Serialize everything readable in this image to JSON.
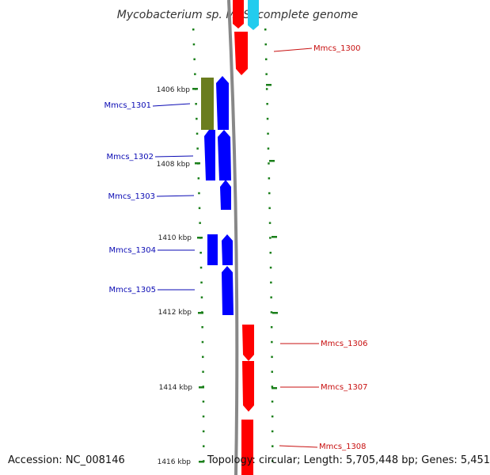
{
  "title": "Mycobacterium sp. MCS, complete genome",
  "accession": "Accession: NC_008146",
  "topology": "Topology: circular; Length: 5,705,448 bp; Genes: 5,451",
  "colors": {
    "forward": "#ff0000",
    "reverse": "#0000ff",
    "olive": "#6b7d1f",
    "cyan": "#22ccee",
    "ticks": "#1a7f1a",
    "backbone": "#888888"
  },
  "kbp_marks": [
    "1406 kbp",
    "1408 kbp",
    "1410 kbp",
    "1412 kbp",
    "1414 kbp",
    "1416 kbp"
  ],
  "genes": [
    {
      "label": "Mmcs_1300",
      "strand": "forward"
    },
    {
      "label": "Mmcs_1301",
      "strand": "reverse"
    },
    {
      "label": "Mmcs_1302",
      "strand": "reverse"
    },
    {
      "label": "Mmcs_1303",
      "strand": "reverse"
    },
    {
      "label": "Mmcs_1304",
      "strand": "reverse"
    },
    {
      "label": "Mmcs_1305",
      "strand": "reverse"
    },
    {
      "label": "Mmcs_1306",
      "strand": "forward"
    },
    {
      "label": "Mmcs_1307",
      "strand": "forward"
    },
    {
      "label": "Mmcs_1308",
      "strand": "forward"
    }
  ]
}
